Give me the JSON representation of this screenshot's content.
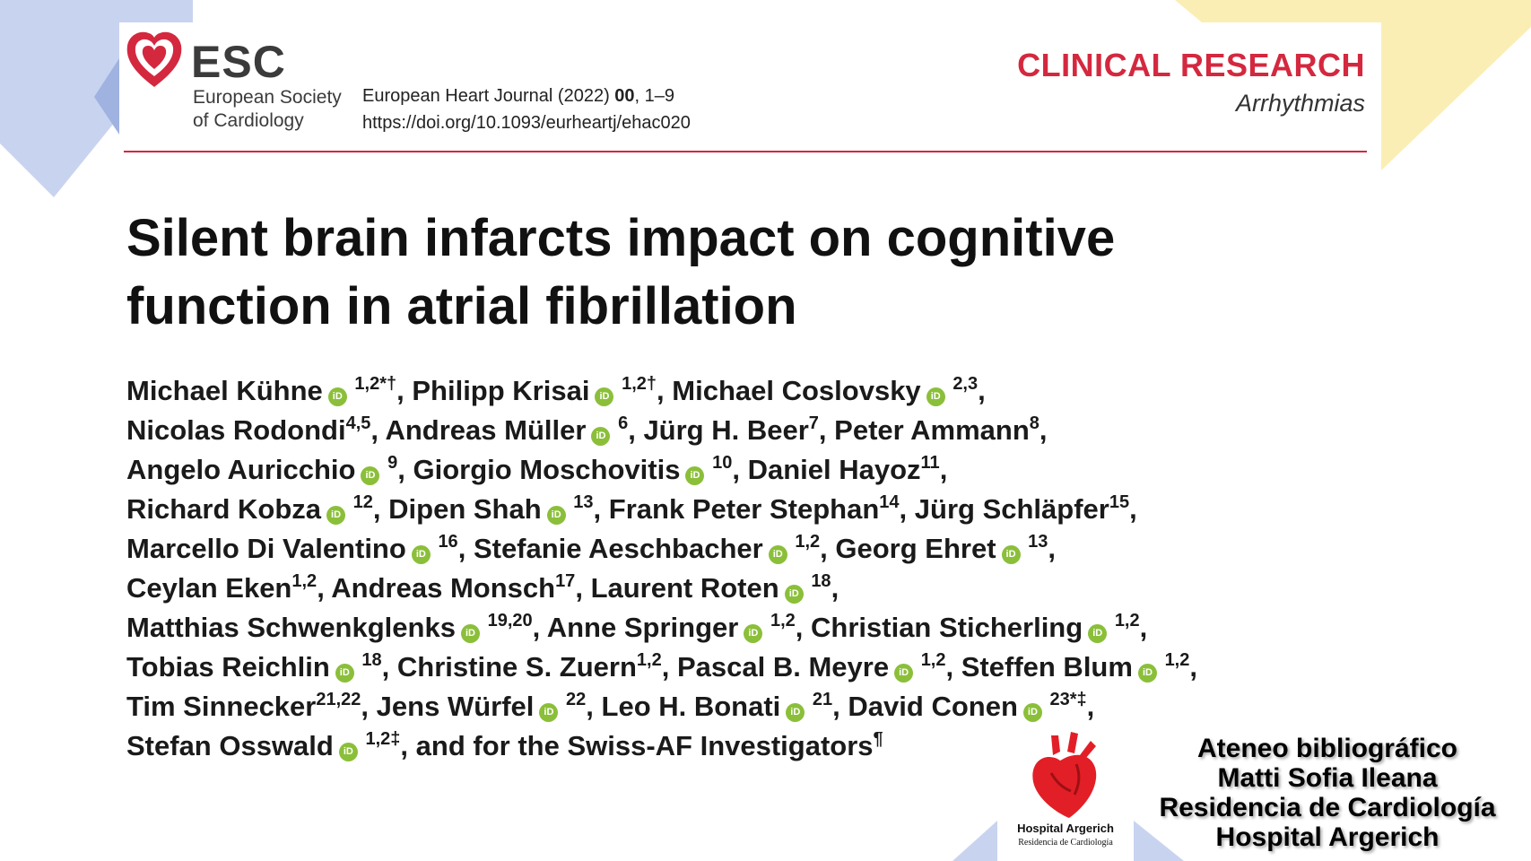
{
  "header": {
    "org_short": "ESC",
    "org_line1": "European Society",
    "org_line2": "of Cardiology",
    "journal_prefix": "European Heart Journal (2022)",
    "journal_volume": "00",
    "journal_pages": ", 1–9",
    "doi": "https://doi.org/10.1093/eurheartj/ehac020",
    "category": "CLINICAL RESEARCH",
    "subcategory": "Arrhythmias"
  },
  "article": {
    "title_line1": "Silent brain infarcts impact on cognitive",
    "title_line2": "function in atrial fibrillation"
  },
  "authors": [
    {
      "name": "Michael Kühne",
      "orcid": true,
      "aff": "1,2*†"
    },
    {
      "name": "Philipp Krisai",
      "orcid": true,
      "aff": "1,2†"
    },
    {
      "name": "Michael Coslovsky",
      "orcid": true,
      "aff": "2,3"
    },
    {
      "name": "Nicolas Rodondi",
      "orcid": false,
      "aff": "4,5"
    },
    {
      "name": "Andreas Müller",
      "orcid": true,
      "aff": "6"
    },
    {
      "name": "Jürg H. Beer",
      "orcid": false,
      "aff": "7"
    },
    {
      "name": "Peter Ammann",
      "orcid": false,
      "aff": "8"
    },
    {
      "name": "Angelo Auricchio",
      "orcid": true,
      "aff": "9"
    },
    {
      "name": "Giorgio Moschovitis",
      "orcid": true,
      "aff": "10"
    },
    {
      "name": "Daniel Hayoz",
      "orcid": false,
      "aff": "11"
    },
    {
      "name": "Richard Kobza",
      "orcid": true,
      "aff": "12"
    },
    {
      "name": "Dipen Shah",
      "orcid": true,
      "aff": "13"
    },
    {
      "name": "Frank Peter Stephan",
      "orcid": false,
      "aff": "14"
    },
    {
      "name": "Jürg Schläpfer",
      "orcid": false,
      "aff": "15"
    },
    {
      "name": "Marcello Di Valentino",
      "orcid": true,
      "aff": "16"
    },
    {
      "name": "Stefanie Aeschbacher",
      "orcid": true,
      "aff": "1,2"
    },
    {
      "name": "Georg Ehret",
      "orcid": true,
      "aff": "13"
    },
    {
      "name": "Ceylan Eken",
      "orcid": false,
      "aff": "1,2"
    },
    {
      "name": "Andreas Monsch",
      "orcid": false,
      "aff": "17"
    },
    {
      "name": "Laurent Roten",
      "orcid": true,
      "aff": "18"
    },
    {
      "name": "Matthias Schwenkglenks",
      "orcid": true,
      "aff": "19,20"
    },
    {
      "name": "Anne Springer",
      "orcid": true,
      "aff": "1,2"
    },
    {
      "name": "Christian Sticherling",
      "orcid": true,
      "aff": "1,2"
    },
    {
      "name": "Tobias Reichlin",
      "orcid": true,
      "aff": "18"
    },
    {
      "name": "Christine S. Zuern",
      "orcid": false,
      "aff": "1,2"
    },
    {
      "name": "Pascal B. Meyre",
      "orcid": true,
      "aff": "1,2"
    },
    {
      "name": "Steffen Blum",
      "orcid": true,
      "aff": "1,2"
    },
    {
      "name": "Tim Sinnecker",
      "orcid": false,
      "aff": "21,22"
    },
    {
      "name": "Jens Würfel",
      "orcid": true,
      "aff": "22"
    },
    {
      "name": "Leo H. Bonati",
      "orcid": true,
      "aff": "21"
    },
    {
      "name": "David Conen",
      "orcid": true,
      "aff": "23*‡"
    },
    {
      "name": "Stefan Osswald",
      "orcid": true,
      "aff": "1,2‡"
    }
  ],
  "authors_tail": "and for the Swiss-AF Investigators",
  "authors_tail_mark": "¶",
  "orcid_glyph": "iD",
  "footer": {
    "logo_name": "Hospital Argerich",
    "logo_sub": "Residencia de Cardiología",
    "lines": [
      "Ateneo bibliográfico",
      "Matti Sofia Ileana",
      "Residencia de Cardiología",
      "Hospital Argerich"
    ]
  },
  "colors": {
    "accent_red": "#d4283f",
    "orcid_green": "#8bbf3a",
    "deco_blue": "#c8d4ef",
    "deco_yellow": "#fbeeb4"
  }
}
